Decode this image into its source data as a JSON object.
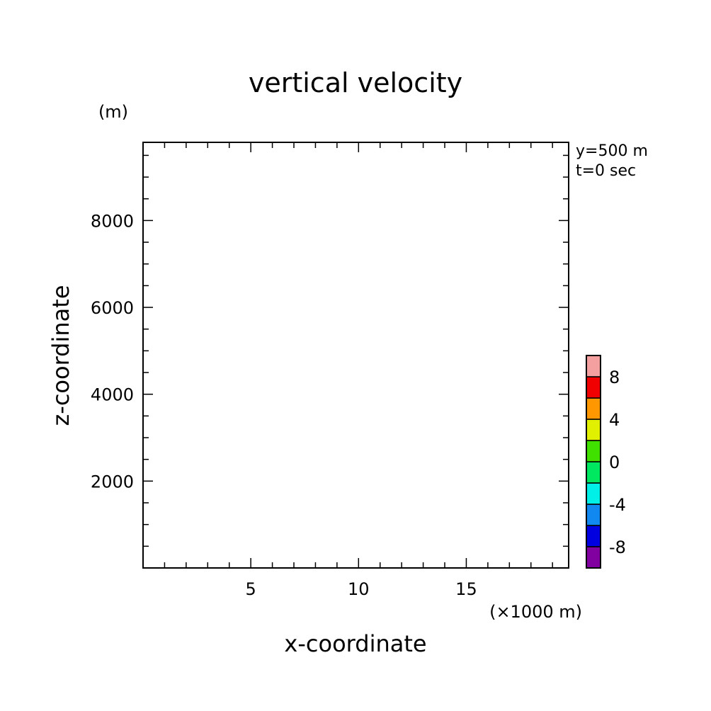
{
  "chart_data": {
    "type": "heatmap",
    "title": "vertical velocity",
    "xlabel": "x-coordinate",
    "ylabel": "z-coordinate",
    "x_unit": "(×1000 m)",
    "y_unit": "(m)",
    "annotations": [
      "y=500 m",
      "t=0 sec"
    ],
    "xlim": [
      0,
      19.75
    ],
    "ylim": [
      0,
      9800
    ],
    "x_ticks": [
      5,
      10,
      15
    ],
    "x_minor_step": 1,
    "y_ticks": [
      2000,
      4000,
      6000,
      8000
    ],
    "y_minor_step": 500,
    "grid": false,
    "values": [],
    "colorbar": {
      "boundaries": [
        -10,
        -8,
        -6,
        -4,
        -2,
        0,
        2,
        4,
        6,
        8,
        10
      ],
      "labels": [
        "-8",
        "-4",
        "0",
        "4",
        "8"
      ],
      "label_values": [
        -8,
        -4,
        0,
        4,
        8
      ],
      "colors": [
        "#8000a0",
        "#0000e0",
        "#1088f0",
        "#00f0e8",
        "#00e860",
        "#40e000",
        "#e0f000",
        "#ff9800",
        "#f00000",
        "#f5a0a0"
      ]
    }
  }
}
